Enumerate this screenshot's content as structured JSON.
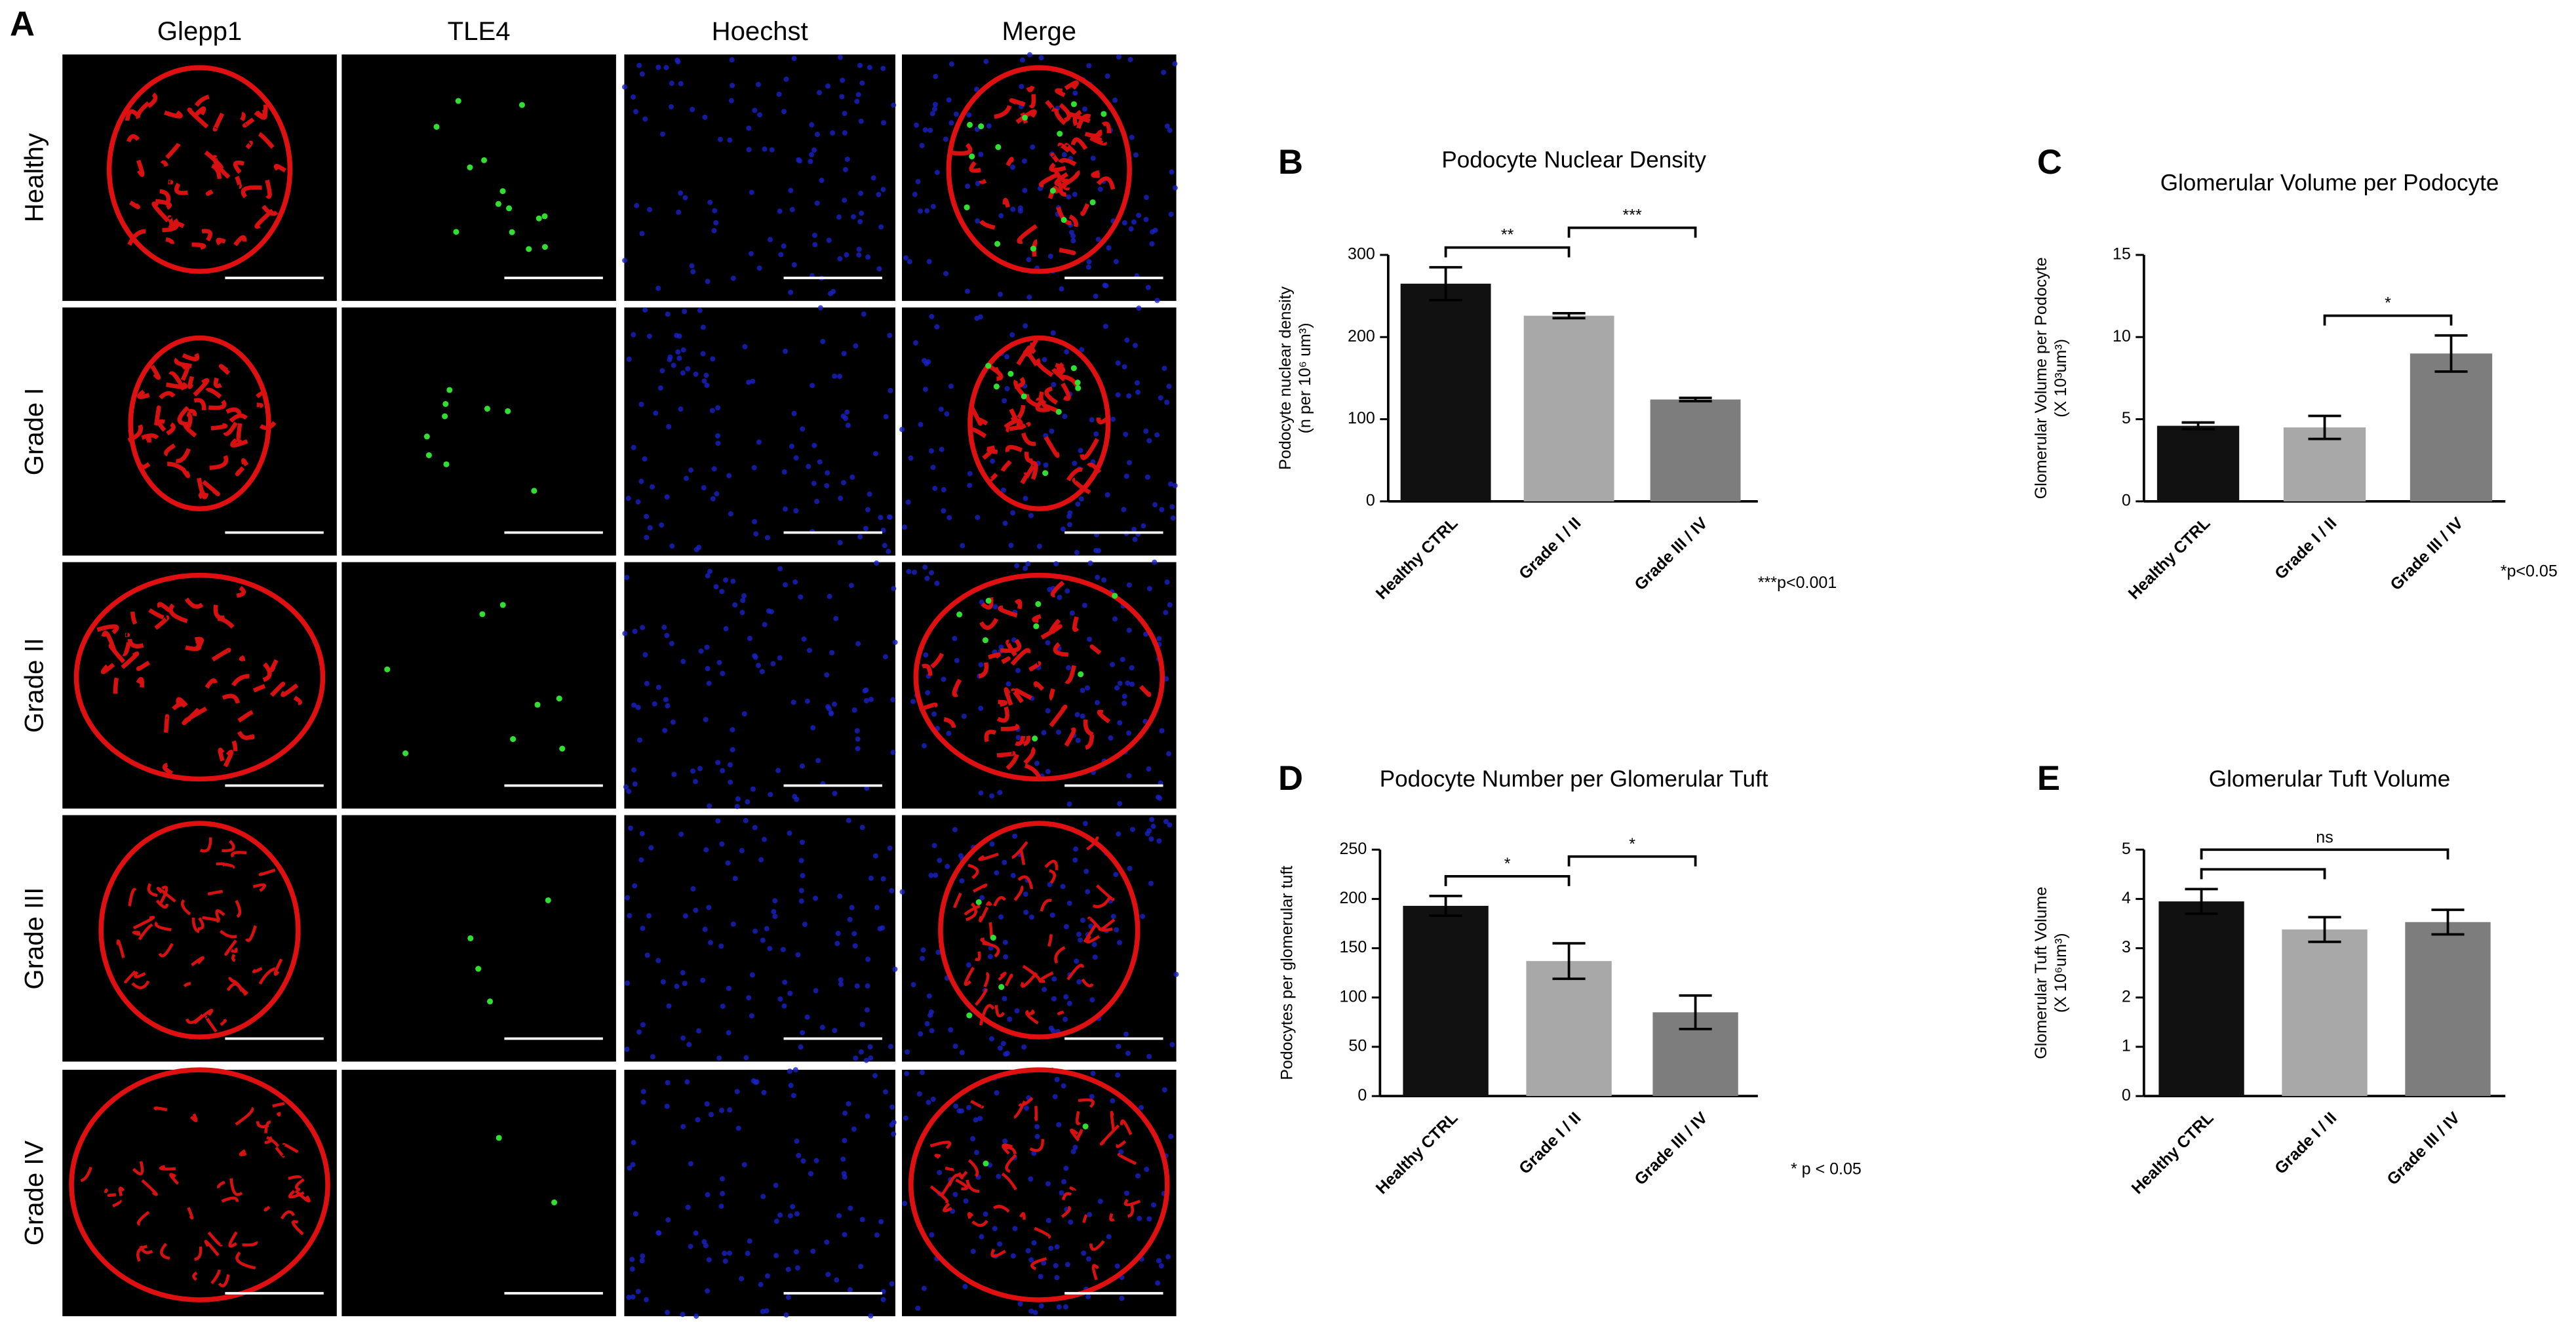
{
  "panel_a": {
    "label": "A",
    "columns": [
      "Glepp1",
      "TLE4",
      "Hoechst",
      "Merge"
    ],
    "rows": [
      "Healthy",
      "Grade I",
      "Grade II",
      "Grade III",
      "Grade IV"
    ]
  },
  "chart_data": [
    {
      "type": "bar",
      "panel_label": "B",
      "title": "Podocyte Nuclear Density",
      "ylabel": [
        "Podocyte nuclear density",
        "(n per 10⁶ um³)"
      ],
      "categories": [
        "Healthy CTRL",
        "Grade I / II",
        "Grade III / IV"
      ],
      "values": [
        265,
        226,
        124
      ],
      "errors": [
        20,
        3,
        2
      ],
      "colors": [
        "#111111",
        "#a8a8a8",
        "#7d7d7d"
      ],
      "ylim": [
        0,
        300
      ],
      "yticks": [
        0,
        100,
        200,
        300
      ],
      "significance": [
        {
          "label": "**",
          "pair": [
            0,
            1
          ]
        },
        {
          "label": "***",
          "pair": [
            1,
            2
          ]
        }
      ],
      "footnote": "***p<0.001"
    },
    {
      "type": "bar",
      "panel_label": "C",
      "title": "Glomerular Volume per Podocyte",
      "ylabel": [
        "Glomerular Volume per Podocyte",
        "(X 10³um³)"
      ],
      "categories": [
        "Healthy CTRL",
        "Grade I / II",
        "Grade III / IV"
      ],
      "values": [
        4.6,
        4.5,
        9.0
      ],
      "errors": [
        0.2,
        0.7,
        1.1
      ],
      "colors": [
        "#111111",
        "#a8a8a8",
        "#7d7d7d"
      ],
      "ylim": [
        0,
        15
      ],
      "yticks": [
        0,
        5,
        10,
        15
      ],
      "significance": [
        {
          "label": "*",
          "pair": [
            1,
            2
          ]
        }
      ],
      "footnote": "*p<0.05"
    },
    {
      "type": "bar",
      "panel_label": "D",
      "title": "Podocyte Number per Glomerular Tuft",
      "ylabel": [
        "Podocytes per glomerular tuft"
      ],
      "categories": [
        "Healthy CTRL",
        "Grade I / II",
        "Grade III / IV"
      ],
      "values": [
        193,
        137,
        85
      ],
      "errors": [
        10,
        18,
        17
      ],
      "colors": [
        "#111111",
        "#a8a8a8",
        "#7d7d7d"
      ],
      "ylim": [
        0,
        250
      ],
      "yticks": [
        0,
        50,
        100,
        150,
        200,
        250
      ],
      "significance": [
        {
          "label": "*",
          "pair": [
            0,
            1
          ]
        },
        {
          "label": "*",
          "pair": [
            1,
            2
          ]
        }
      ],
      "footnote": "* p < 0.05"
    },
    {
      "type": "bar",
      "panel_label": "E",
      "title": "Glomerular Tuft Volume",
      "ylabel": [
        "Glomerular Tuft Volume",
        "(X 10⁶um³)"
      ],
      "categories": [
        "Healthy CTRL",
        "Grade I / II",
        "Grade III / IV"
      ],
      "values": [
        3.95,
        3.38,
        3.53
      ],
      "errors": [
        0.25,
        0.25,
        0.25
      ],
      "colors": [
        "#111111",
        "#a8a8a8",
        "#7d7d7d"
      ],
      "ylim": [
        0,
        5
      ],
      "yticks": [
        0,
        1,
        2,
        3,
        4,
        5
      ],
      "significance": [
        {
          "pair": [
            0,
            1
          ]
        },
        {
          "label": "ns",
          "pair": [
            0,
            2
          ]
        }
      ]
    }
  ]
}
